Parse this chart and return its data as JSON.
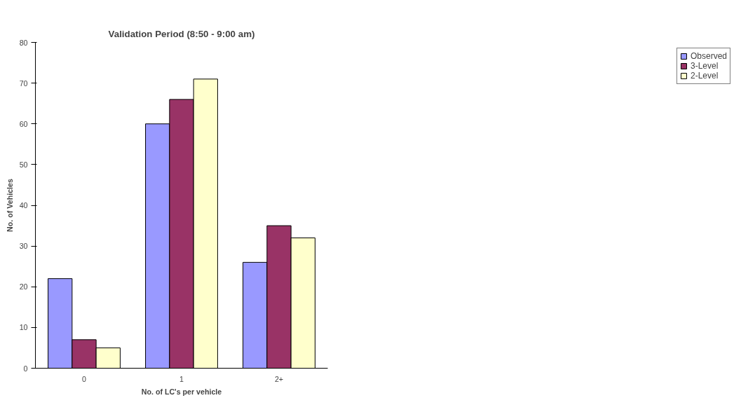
{
  "chart_data": {
    "type": "bar",
    "title": "Validation Period (8:50 - 9:00 am)",
    "xlabel": "No. of LC's per vehicle",
    "ylabel": "No. of Vehicles",
    "categories": [
      "0",
      "1",
      "2+"
    ],
    "series": [
      {
        "name": "Observed",
        "color": "#9999ff",
        "values": [
          22,
          60,
          26
        ]
      },
      {
        "name": "3-Level",
        "color": "#993366",
        "values": [
          7,
          66,
          35
        ]
      },
      {
        "name": "2-Level",
        "color": "#ffffcc",
        "values": [
          5,
          71,
          32
        ]
      }
    ],
    "ylim": [
      0,
      80
    ],
    "yticks": [
      0,
      10,
      20,
      30,
      40,
      50,
      60,
      70,
      80
    ],
    "grid": false,
    "legend": "right"
  }
}
